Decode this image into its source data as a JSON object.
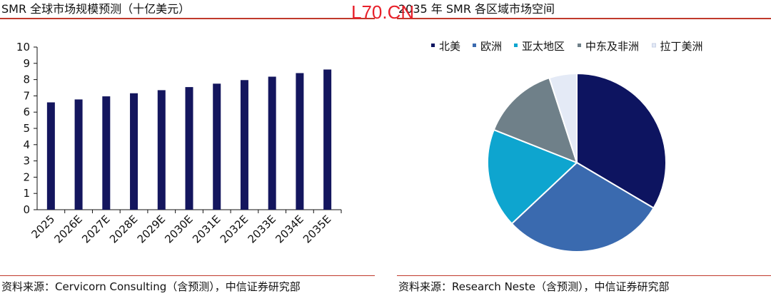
{
  "watermark": "L70.CN",
  "chart_data": [
    {
      "type": "bar",
      "title": "SMR 全球市场规模预测（十亿美元）",
      "source": "资料来源：Cervicorn Consulting（含预测），中信证券研究部",
      "categories": [
        "2025",
        "2026E",
        "2027E",
        "2028E",
        "2029E",
        "2030E",
        "2031E",
        "2032E",
        "2033E",
        "2034E",
        "2035E"
      ],
      "values": [
        6.6,
        6.78,
        6.97,
        7.16,
        7.35,
        7.54,
        7.75,
        7.97,
        8.18,
        8.4,
        8.62
      ],
      "ylim": [
        0,
        10
      ],
      "yticks": [
        "0",
        "1",
        "2",
        "3",
        "4",
        "5",
        "6",
        "7",
        "8",
        "9",
        "10"
      ],
      "bar_color": "#14165e",
      "grid": false
    },
    {
      "type": "pie",
      "title": "2035 年 SMR 各区域市场空间",
      "source": "资料来源：Research Neste（含预测），中信证券研究部",
      "legend_position": "top",
      "slices": [
        {
          "label": "北美",
          "value": 33.5,
          "color": "#0d1460"
        },
        {
          "label": "欧洲",
          "value": 29.5,
          "color": "#3a6aaf"
        },
        {
          "label": "亚太地区",
          "value": 18.0,
          "color": "#0ea5cf"
        },
        {
          "label": "中东及非洲",
          "value": 14.0,
          "color": "#6f8089"
        },
        {
          "label": "拉丁美洲",
          "value": 5.0,
          "color": "#e4eaf6"
        }
      ]
    }
  ]
}
